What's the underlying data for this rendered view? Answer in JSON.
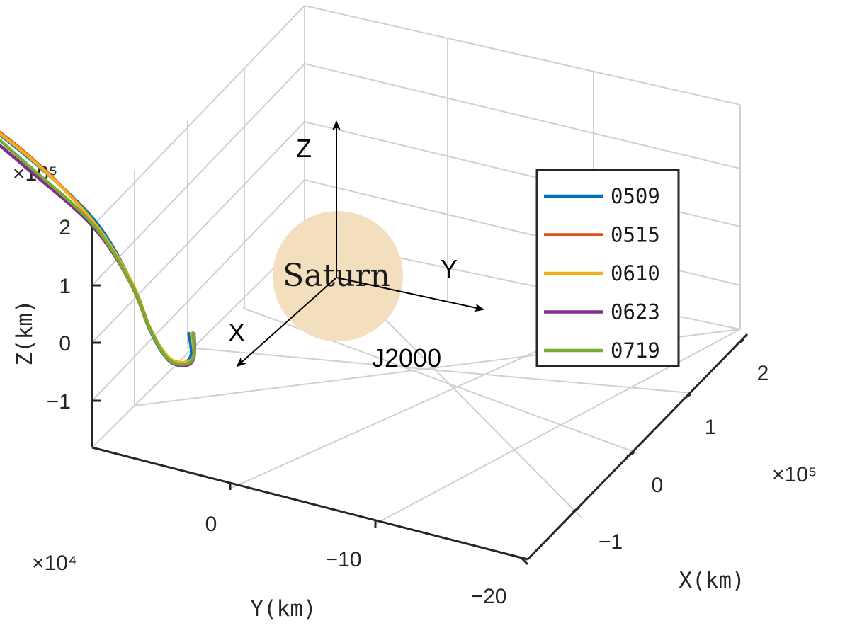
{
  "chart_data": {
    "type": "line3d",
    "title": "",
    "xlabel": "X(km)",
    "ylabel": "Y(km)",
    "zlabel": "Z(km)",
    "x_exponent": "×10⁵",
    "y_exponent": "×10⁴",
    "z_exponent": "×10⁵",
    "x_ticks": [
      "2",
      "1",
      "0",
      "−1"
    ],
    "y_ticks": [
      "0",
      "−10",
      "−20"
    ],
    "z_ticks": [
      "2",
      "1",
      "0",
      "−1"
    ],
    "grid": true,
    "legend_position": "right",
    "annotations": {
      "planet": "Saturn",
      "frame": "J2000",
      "axis_x": "X",
      "axis_y": "Y",
      "axis_z": "Z"
    },
    "series": [
      {
        "name": "0509",
        "color": "#0072BD",
        "points": [
          [
            -0.6,
            -28,
            1.6
          ],
          [
            -0.2,
            -22,
            1.5
          ],
          [
            0.2,
            -16,
            1.2
          ],
          [
            0.6,
            -12,
            0.8
          ],
          [
            0.8,
            -10,
            0.3
          ],
          [
            0.75,
            -9,
            -0.2
          ],
          [
            0.45,
            -9,
            -0.6
          ],
          [
            0.0,
            -10,
            -0.95
          ],
          [
            -0.5,
            -12,
            -1.2
          ]
        ]
      },
      {
        "name": "0515",
        "color": "#D95319",
        "points": [
          [
            -0.7,
            -29,
            1.6
          ],
          [
            -0.25,
            -22,
            1.45
          ],
          [
            0.2,
            -16,
            1.15
          ],
          [
            0.6,
            -12,
            0.75
          ],
          [
            0.78,
            -10,
            0.25
          ],
          [
            0.72,
            -9,
            -0.25
          ],
          [
            0.4,
            -9,
            -0.65
          ],
          [
            -0.05,
            -10,
            -1.0
          ],
          [
            -0.55,
            -12,
            -1.25
          ]
        ]
      },
      {
        "name": "0610",
        "color": "#EDB120",
        "points": [
          [
            -0.68,
            -29,
            1.6
          ],
          [
            -0.24,
            -22,
            1.45
          ],
          [
            0.2,
            -16,
            1.15
          ],
          [
            0.58,
            -12,
            0.75
          ],
          [
            0.77,
            -10,
            0.25
          ],
          [
            0.7,
            -9,
            -0.25
          ],
          [
            0.38,
            -9,
            -0.65
          ],
          [
            -0.05,
            -10,
            -1.0
          ],
          [
            -0.55,
            -12,
            -1.25
          ]
        ]
      },
      {
        "name": "0623",
        "color": "#7E2F8E",
        "points": [
          [
            -0.5,
            -27,
            1.5
          ],
          [
            -0.15,
            -22,
            1.38
          ],
          [
            0.22,
            -16,
            1.1
          ],
          [
            0.58,
            -12,
            0.7
          ],
          [
            0.76,
            -10,
            0.2
          ],
          [
            0.7,
            -9,
            -0.3
          ],
          [
            0.38,
            -9,
            -0.7
          ],
          [
            -0.05,
            -10,
            -1.05
          ],
          [
            -0.6,
            -12,
            -1.3
          ]
        ]
      },
      {
        "name": "0719",
        "color": "#77AC30",
        "points": [
          [
            -0.55,
            -27,
            1.52
          ],
          [
            -0.18,
            -22,
            1.4
          ],
          [
            0.21,
            -16,
            1.12
          ],
          [
            0.59,
            -12,
            0.73
          ],
          [
            0.77,
            -10,
            0.23
          ],
          [
            0.71,
            -9,
            -0.27
          ],
          [
            0.39,
            -9,
            -0.67
          ],
          [
            -0.05,
            -10,
            -1.02
          ],
          [
            -0.58,
            -12,
            -1.27
          ]
        ]
      }
    ]
  }
}
